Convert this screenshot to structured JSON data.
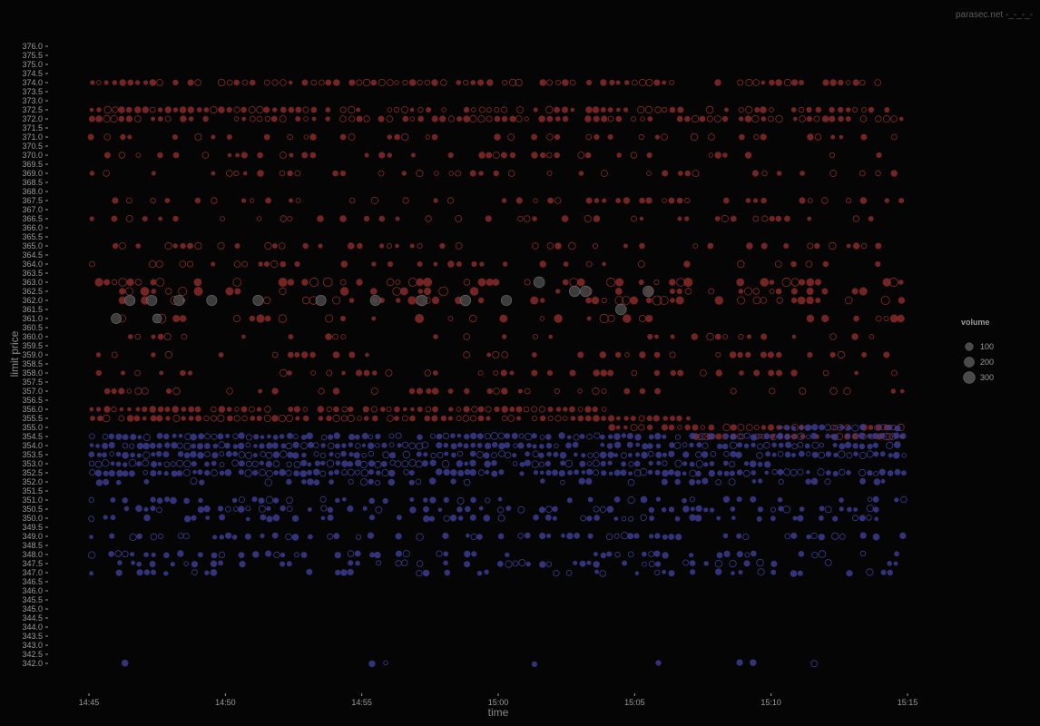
{
  "watermark": "parasec.net -_-_-_-",
  "colors": {
    "background": "#050505",
    "ask": "#8a2a2a",
    "bid": "#3c3c92",
    "bubble": "#4a4a4a",
    "bubble_stroke": "#707070",
    "tick": "#9a9a9a"
  },
  "chart_data": {
    "type": "scatter",
    "subtype": "limit order book depth bubbles",
    "title": "",
    "xlabel": "time",
    "ylabel": "limit price",
    "x_range_minutes": [
      0,
      30
    ],
    "x_ticks": [
      {
        "label": "14:45",
        "minute": 0
      },
      {
        "label": "14:50",
        "minute": 5
      },
      {
        "label": "14:55",
        "minute": 10
      },
      {
        "label": "15:00",
        "minute": 15
      },
      {
        "label": "15:05",
        "minute": 20
      },
      {
        "label": "15:10",
        "minute": 25
      },
      {
        "label": "15:15",
        "minute": 30
      }
    ],
    "ylim": [
      342.0,
      376.0
    ],
    "y_tick_step": 0.5,
    "y_tick_labels": [
      "342.0",
      "342.5",
      "343.0",
      "343.5",
      "344.0",
      "344.5",
      "345.0",
      "345.5",
      "346.0",
      "346.5",
      "347.0",
      "347.5",
      "348.0",
      "348.5",
      "349.0",
      "349.5",
      "350.0",
      "350.5",
      "351.0",
      "351.5",
      "352.0",
      "352.5",
      "353.0",
      "353.5",
      "354.0",
      "354.5",
      "355.0",
      "355.5",
      "356.0",
      "356.5",
      "357.0",
      "357.5",
      "358.0",
      "358.5",
      "359.0",
      "359.5",
      "360.0",
      "360.5",
      "361.0",
      "361.5",
      "362.0",
      "362.5",
      "363.0",
      "363.5",
      "364.0",
      "364.5",
      "365.0",
      "365.5",
      "366.0",
      "366.5",
      "367.0",
      "367.5",
      "368.0",
      "368.5",
      "369.0",
      "369.5",
      "370.0",
      "370.5",
      "371.0",
      "371.5",
      "372.0",
      "372.5",
      "373.0",
      "373.5",
      "374.0",
      "374.5",
      "375.0",
      "375.5",
      "376.0"
    ],
    "legend": {
      "title": "volume",
      "placement": "right",
      "entries": [
        {
          "label": "100",
          "volume": 100
        },
        {
          "label": "200",
          "volume": 200
        },
        {
          "label": "300",
          "volume": 300
        }
      ]
    },
    "series": [
      {
        "name": "ask",
        "side": "ask",
        "price_levels": [
          355.5,
          356.0,
          357.0,
          358.0,
          359.0,
          360.0,
          361.0,
          362.0,
          362.5,
          363.0,
          364.0,
          365.0,
          366.5,
          367.5,
          369.0,
          370.0,
          371.0,
          372.0,
          372.5,
          374.0
        ]
      },
      {
        "name": "bid",
        "side": "bid",
        "price_levels": [
          347.0,
          347.5,
          348.0,
          349.0,
          350.0,
          350.5,
          351.0,
          352.0,
          352.5,
          353.0,
          353.5,
          354.0,
          354.5,
          342.0
        ]
      }
    ],
    "heavy_orders": [
      {
        "minute": 1.5,
        "price": 362.0,
        "volume": 220
      },
      {
        "minute": 2.3,
        "price": 362.0,
        "volume": 220
      },
      {
        "minute": 3.3,
        "price": 362.0,
        "volume": 220
      },
      {
        "minute": 4.5,
        "price": 362.0,
        "volume": 210
      },
      {
        "minute": 6.2,
        "price": 362.0,
        "volume": 210
      },
      {
        "minute": 8.5,
        "price": 362.0,
        "volume": 210
      },
      {
        "minute": 10.5,
        "price": 362.0,
        "volume": 210
      },
      {
        "minute": 12.2,
        "price": 362.0,
        "volume": 230
      },
      {
        "minute": 13.8,
        "price": 362.0,
        "volume": 230
      },
      {
        "minute": 15.3,
        "price": 362.0,
        "volume": 220
      },
      {
        "minute": 16.5,
        "price": 363.0,
        "volume": 240
      },
      {
        "minute": 17.8,
        "price": 362.5,
        "volume": 230
      },
      {
        "minute": 18.2,
        "price": 362.5,
        "volume": 240
      },
      {
        "minute": 19.5,
        "price": 361.5,
        "volume": 240
      },
      {
        "minute": 20.5,
        "price": 362.5,
        "volume": 230
      },
      {
        "minute": 1.0,
        "price": 361.0,
        "volume": 200
      },
      {
        "minute": 2.5,
        "price": 361.0,
        "volume": 150
      }
    ]
  }
}
